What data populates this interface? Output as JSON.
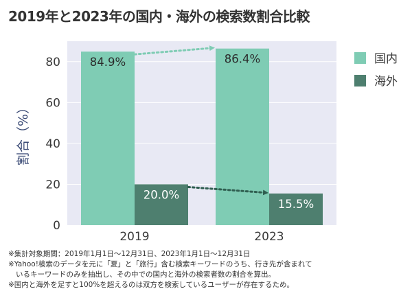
{
  "title": "2019年と2023年の国内・海外の検索数割合比較",
  "colors": {
    "domestic": "#7fccb4",
    "overseas": "#4e7f6f",
    "plot_bg": "#e8e9f4",
    "grid": "#ffffff",
    "arrow_domestic": "#7fccb4",
    "arrow_overseas": "#2f5e50"
  },
  "chart_data": {
    "type": "bar",
    "categories": [
      "2019",
      "2023"
    ],
    "series": [
      {
        "name": "国内",
        "values": [
          84.9,
          86.4
        ],
        "labels": [
          "84.9%",
          "86.4%"
        ]
      },
      {
        "name": "海外",
        "values": [
          20.0,
          15.5
        ],
        "labels": [
          "20.0%",
          "15.5%"
        ]
      }
    ],
    "ylabel": "割合（%）",
    "ylim": [
      0,
      90
    ],
    "yticks": [
      0,
      20,
      40,
      60,
      80
    ],
    "grid": true,
    "legend": "top-right",
    "annotations": [
      "dotted arrow 国内 2019→2023",
      "dotted arrow 海外 2019→2023"
    ]
  },
  "notes": [
    "※集計対象期間：2019年1月1日〜12月31日、2023年1月1日〜12月31日",
    "※Yahoo!検索のデータを元に「夏」と「旅行」含む検索キーワードのうち、行き先が含まれて",
    "いるキーワードのみを抽出し、その中での国内と海外の検索者数の割合を算出。",
    "※国内と海外を足すと100%を超えるのは双方を検索しているユーザーが存在するため。"
  ]
}
